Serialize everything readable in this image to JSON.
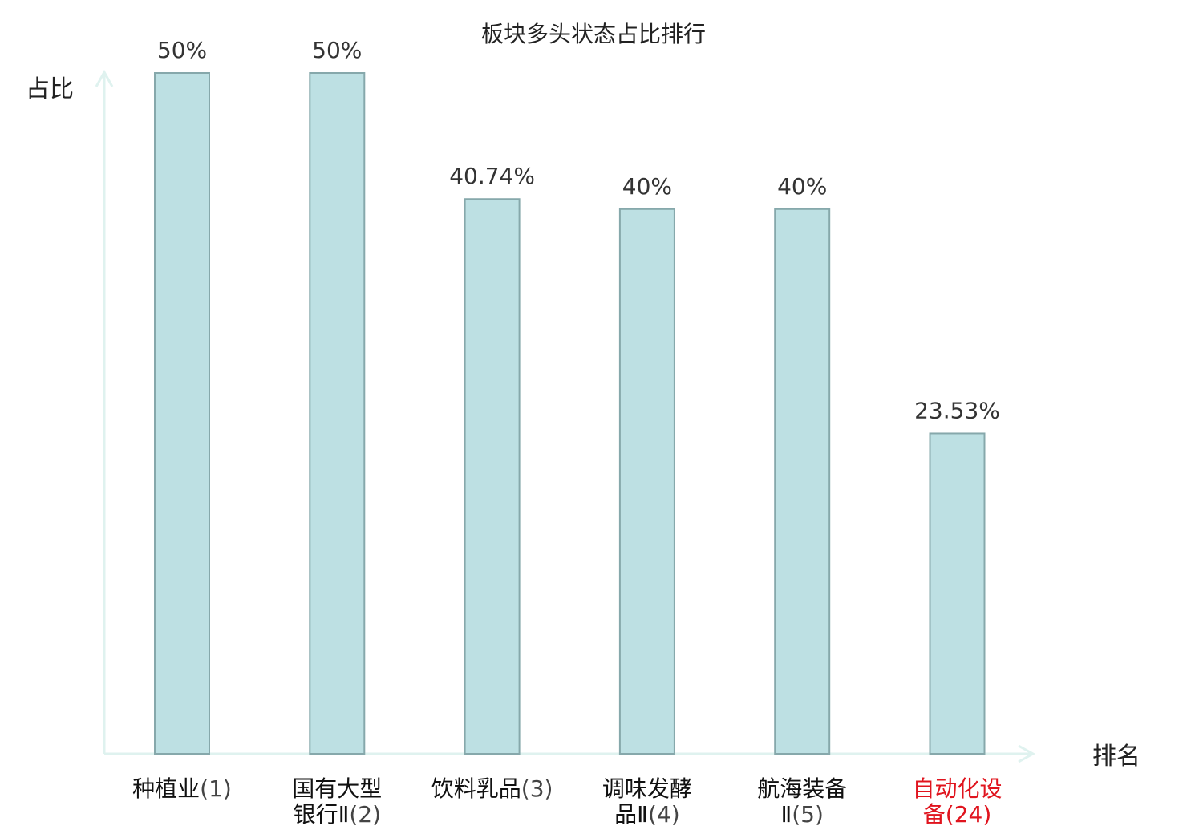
{
  "chart_data": {
    "type": "bar",
    "title": "板块多头状态占比排行",
    "ylabel": "占比",
    "xlabel": "排名",
    "ylim": [
      0,
      50
    ],
    "grid": false,
    "categories": [
      {
        "lines": [
          "种植业(1)"
        ],
        "highlight": false
      },
      {
        "lines": [
          "国有大型",
          "银行Ⅱ(2)"
        ],
        "highlight": false
      },
      {
        "lines": [
          "饮料乳品(3)"
        ],
        "highlight": false
      },
      {
        "lines": [
          "调味发酵",
          "品Ⅱ(4)"
        ],
        "highlight": false
      },
      {
        "lines": [
          "航海装备",
          "Ⅱ(5)"
        ],
        "highlight": false
      },
      {
        "lines": [
          "自动化设",
          "备(24)"
        ],
        "highlight": true
      }
    ],
    "values": [
      50,
      50,
      40.74,
      40,
      40,
      23.53
    ],
    "value_labels": [
      "50%",
      "50%",
      "40.74%",
      "40%",
      "40%",
      "23.53%"
    ],
    "colors": {
      "bar_fill": "#bde0e3",
      "bar_stroke": "#86a8ab",
      "axis": "#dff2ef",
      "highlight": "#e0141e"
    }
  }
}
